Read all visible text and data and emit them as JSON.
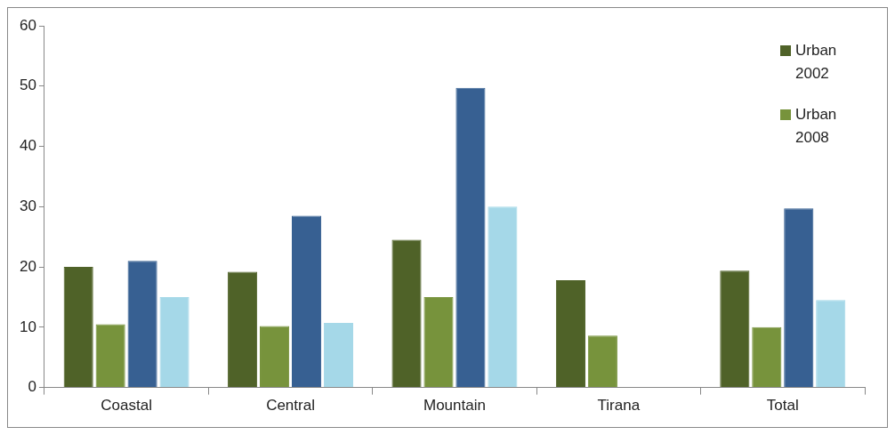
{
  "chart_data": {
    "type": "bar",
    "categories": [
      "Coastal",
      "Central",
      "Mountain",
      "Tirana",
      "Total"
    ],
    "series": [
      {
        "name": "Urban 2002",
        "color": "#4f6228",
        "values": [
          20,
          19.2,
          24.5,
          17.8,
          19.4
        ]
      },
      {
        "name": "Urban 2008",
        "color": "#77933c",
        "values": [
          10.5,
          10.2,
          15,
          8.6,
          10
        ]
      },
      {
        "color": "#376092",
        "values": [
          21,
          28.5,
          49.7,
          null,
          29.7
        ]
      },
      {
        "color": "#a5d8e8",
        "values": [
          15,
          10.7,
          30,
          null,
          14.5
        ]
      }
    ],
    "ylim": [
      0,
      60
    ],
    "yticks": [
      0,
      10,
      20,
      30,
      40,
      50,
      60
    ],
    "grid": false,
    "legend": "top right"
  }
}
